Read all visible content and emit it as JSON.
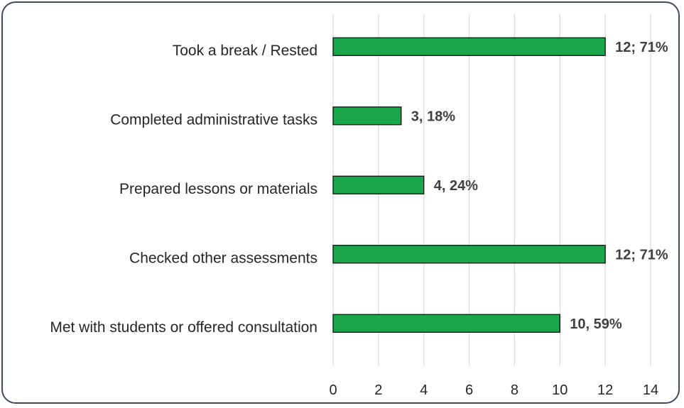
{
  "chart_data": {
    "type": "bar",
    "orientation": "horizontal",
    "categories": [
      "Took a break / Rested",
      "Completed administrative tasks",
      "Prepared lessons or materials",
      "Checked other assessments",
      "Met with students or offered consultation"
    ],
    "values": [
      12,
      3,
      4,
      12,
      10
    ],
    "data_labels": [
      "12; 71%",
      "3, 18%",
      "4, 24%",
      "12; 71%",
      "10, 59%"
    ],
    "xlim": [
      0,
      14
    ],
    "xticks": [
      0,
      2,
      4,
      6,
      8,
      10,
      12,
      14
    ],
    "grid": "vertical",
    "bar_color": "#1aa64a",
    "bar_edge_color": "#111111",
    "title": "",
    "xlabel": "",
    "ylabel": ""
  }
}
